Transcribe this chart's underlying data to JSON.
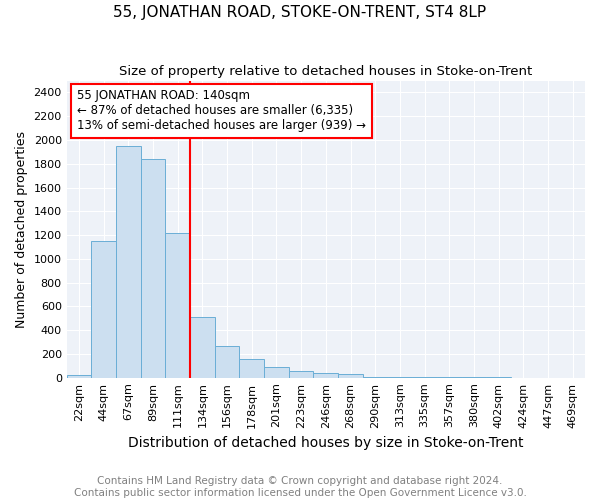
{
  "title": "55, JONATHAN ROAD, STOKE-ON-TRENT, ST4 8LP",
  "subtitle": "Size of property relative to detached houses in Stoke-on-Trent",
  "xlabel": "Distribution of detached houses by size in Stoke-on-Trent",
  "ylabel": "Number of detached properties",
  "footnote1": "Contains HM Land Registry data © Crown copyright and database right 2024.",
  "footnote2": "Contains public sector information licensed under the Open Government Licence v3.0.",
  "categories": [
    "22sqm",
    "44sqm",
    "67sqm",
    "89sqm",
    "111sqm",
    "134sqm",
    "156sqm",
    "178sqm",
    "201sqm",
    "223sqm",
    "246sqm",
    "268sqm",
    "290sqm",
    "313sqm",
    "335sqm",
    "357sqm",
    "380sqm",
    "402sqm",
    "424sqm",
    "447sqm",
    "469sqm"
  ],
  "values": [
    25,
    1150,
    1950,
    1840,
    1220,
    510,
    270,
    155,
    90,
    55,
    40,
    35,
    5,
    5,
    3,
    2,
    2,
    2,
    1,
    0,
    0
  ],
  "bar_color": "#ccdff0",
  "bar_edge_color": "#6aaed6",
  "red_line_x": 5.0,
  "annotation_line1": "55 JONATHAN ROAD: 140sqm",
  "annotation_line2": "← 87% of detached houses are smaller (6,335)",
  "annotation_line3": "13% of semi-detached houses are larger (939) →",
  "annotation_box_color": "white",
  "annotation_box_edge_color": "red",
  "red_line_color": "red",
  "ylim": [
    0,
    2500
  ],
  "yticks": [
    0,
    200,
    400,
    600,
    800,
    1000,
    1200,
    1400,
    1600,
    1800,
    2000,
    2200,
    2400
  ],
  "title_fontsize": 11,
  "subtitle_fontsize": 9.5,
  "xlabel_fontsize": 10,
  "ylabel_fontsize": 9,
  "tick_fontsize": 8,
  "footnote_fontsize": 7.5,
  "background_color": "#eef2f8"
}
